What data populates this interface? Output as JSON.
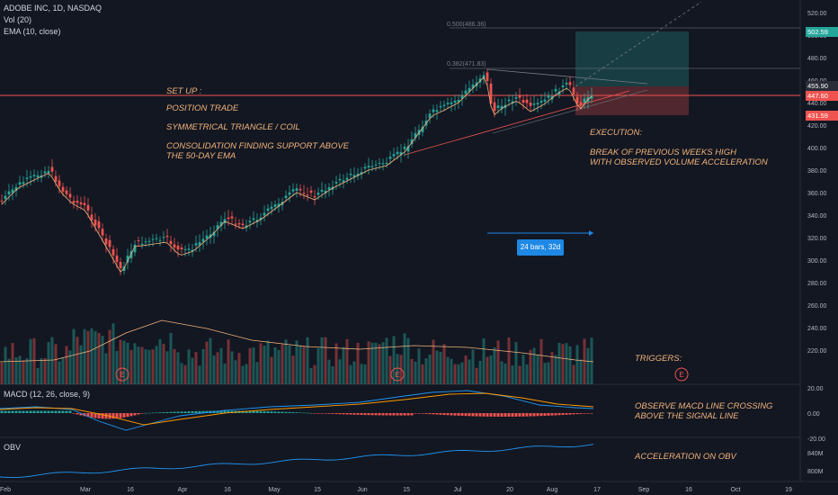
{
  "header": {
    "symbol": "ADOBE INC, 1D, NASDAQ",
    "vol_indicator": "Vol (20)",
    "ema_indicator": "EMA (10, close)"
  },
  "annotations": {
    "setup": "SET UP :",
    "position": "POSITION TRADE",
    "pattern": "SYMMETRICAL TRIANGLE / COIL",
    "consolidation": "CONSOLIDATION FINDING SUPPORT ABOVE\nTHE 50-DAY EMA",
    "execution": "EXECUTION:",
    "execution_detail": "BREAK OF PREVIOUS WEEKS HIGH\nWITH OBSERVED VOLUME ACCELERATION",
    "triggers": "TRIGGERS:",
    "macd_note": "OBSERVE MACD LINE CROSSING\nABOVE THE SIGNAL LINE",
    "obv_note": "ACCELERATION ON OBV"
  },
  "fib": {
    "level_top": "0.500(486.36)",
    "level_mid": "0.382(471.83)"
  },
  "measure": {
    "label": "24 bars, 32d"
  },
  "earnings_marker": "E",
  "price_tags": [
    {
      "value": "502.59",
      "color": "#26a69a"
    },
    {
      "value": "455.90",
      "color": "#2a2e39"
    },
    {
      "value": "447.60",
      "color": "#ef5350"
    },
    {
      "value": "431.59",
      "color": "#ef5350"
    }
  ],
  "price_axis": [
    "520.00",
    "500.00",
    "480.00",
    "460.00",
    "440.00",
    "420.00",
    "400.00",
    "380.00",
    "360.00",
    "340.00",
    "320.00",
    "300.00",
    "280.00",
    "260.00",
    "240.00",
    "220.00"
  ],
  "macd": {
    "label": "MACD (12, 26, close, 9)",
    "axis": [
      "20.00",
      "0.00",
      "-20.00"
    ]
  },
  "obv": {
    "label": "OBV",
    "axis": [
      "840M",
      "800M"
    ]
  },
  "time_axis": [
    "Feb",
    "Mar",
    "16",
    "Apr",
    "16",
    "May",
    "15",
    "Jun",
    "15",
    "Jul",
    "20",
    "Aug",
    "17",
    "Sep",
    "16",
    "Oct",
    "19"
  ],
  "colors": {
    "bg": "#131722",
    "up": "#26a69a",
    "down": "#ef5350",
    "annotation": "#f0b27a",
    "ema": "#f0b27a"
  }
}
